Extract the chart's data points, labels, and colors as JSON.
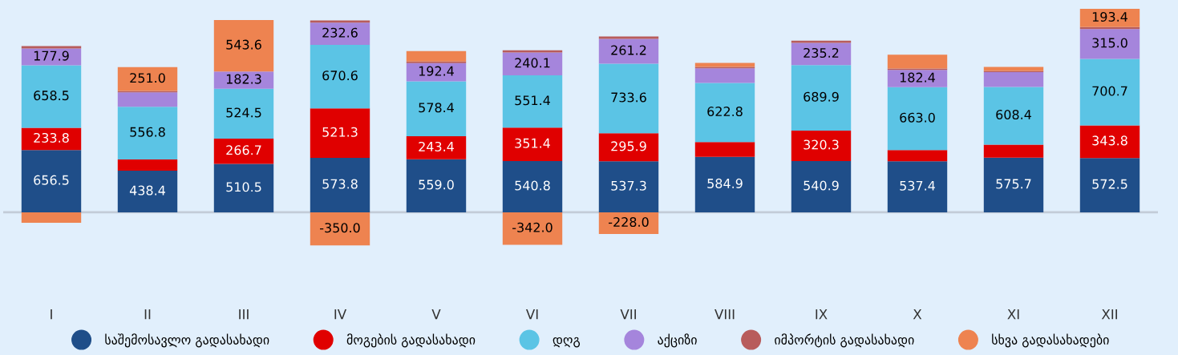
{
  "chart_data": {
    "type": "bar",
    "stacked": true,
    "categories": [
      "I",
      "II",
      "III",
      "IV",
      "V",
      "VI",
      "VII",
      "VIII",
      "IX",
      "X",
      "XI",
      "XII"
    ],
    "series": [
      {
        "name": "საშემოსავლო გადასახადი",
        "color": "#1f4e89",
        "values": [
          656.5,
          438.4,
          510.5,
          573.8,
          559.0,
          540.8,
          537.3,
          584.9,
          540.9,
          537.4,
          575.7,
          572.5
        ],
        "value_labels": [
          "656.5",
          "438.4",
          "510.5",
          "573.8",
          "559.0",
          "540.8",
          "537.3",
          "584.9",
          "540.9",
          "537.4",
          "575.7",
          "572.5"
        ]
      },
      {
        "name": "მოგების გადასახადი",
        "color": "#e00000",
        "values": [
          233.8,
          118,
          266.7,
          521.3,
          243.4,
          351.4,
          295.9,
          155,
          320.3,
          118,
          138,
          343.8
        ],
        "value_labels": [
          "233.8",
          null,
          "266.7",
          "521.3",
          "243.4",
          "351.4",
          "295.9",
          null,
          "320.3",
          null,
          null,
          "343.8"
        ]
      },
      {
        "name": "დღგ",
        "color": "#5bc4e5",
        "values": [
          658.5,
          556.8,
          524.5,
          670.6,
          578.4,
          551.4,
          733.6,
          622.8,
          689.9,
          663.0,
          608.4,
          700.7
        ],
        "value_labels": [
          "658.5",
          "556.8",
          "524.5",
          "670.6",
          "578.4",
          "551.4",
          "733.6",
          "622.8",
          "689.9",
          "663.0",
          "608.4",
          "700.7"
        ]
      },
      {
        "name": "აქციზი",
        "color": "#a585dc",
        "values": [
          177.9,
          152,
          182.3,
          232.6,
          192.4,
          240.1,
          261.2,
          155,
          235.2,
          182.4,
          155,
          315.0
        ],
        "value_labels": [
          "177.9",
          null,
          "182.3",
          "232.6",
          "192.4",
          "240.1",
          "261.2",
          null,
          "235.2",
          "182.4",
          null,
          "315.0"
        ]
      },
      {
        "name": "იმპორტის გადასახადი",
        "color": "#b85c5c",
        "values": [
          25,
          14,
          0,
          25,
          17,
          25,
          25,
          14,
          23,
          14,
          14,
          20
        ]
      },
      {
        "name": "სხვა გადასახადები",
        "color": "#ee8350",
        "values": [
          -110,
          251.0,
          543.6,
          -350.0,
          110,
          -342.0,
          -228.0,
          42,
          0,
          147,
          42,
          193.4
        ],
        "value_labels": [
          null,
          "251.0",
          "543.6",
          "-350.0",
          null,
          "-342.0",
          "-228.0",
          null,
          null,
          null,
          null,
          "193.4"
        ]
      }
    ],
    "legend": "bottom"
  }
}
